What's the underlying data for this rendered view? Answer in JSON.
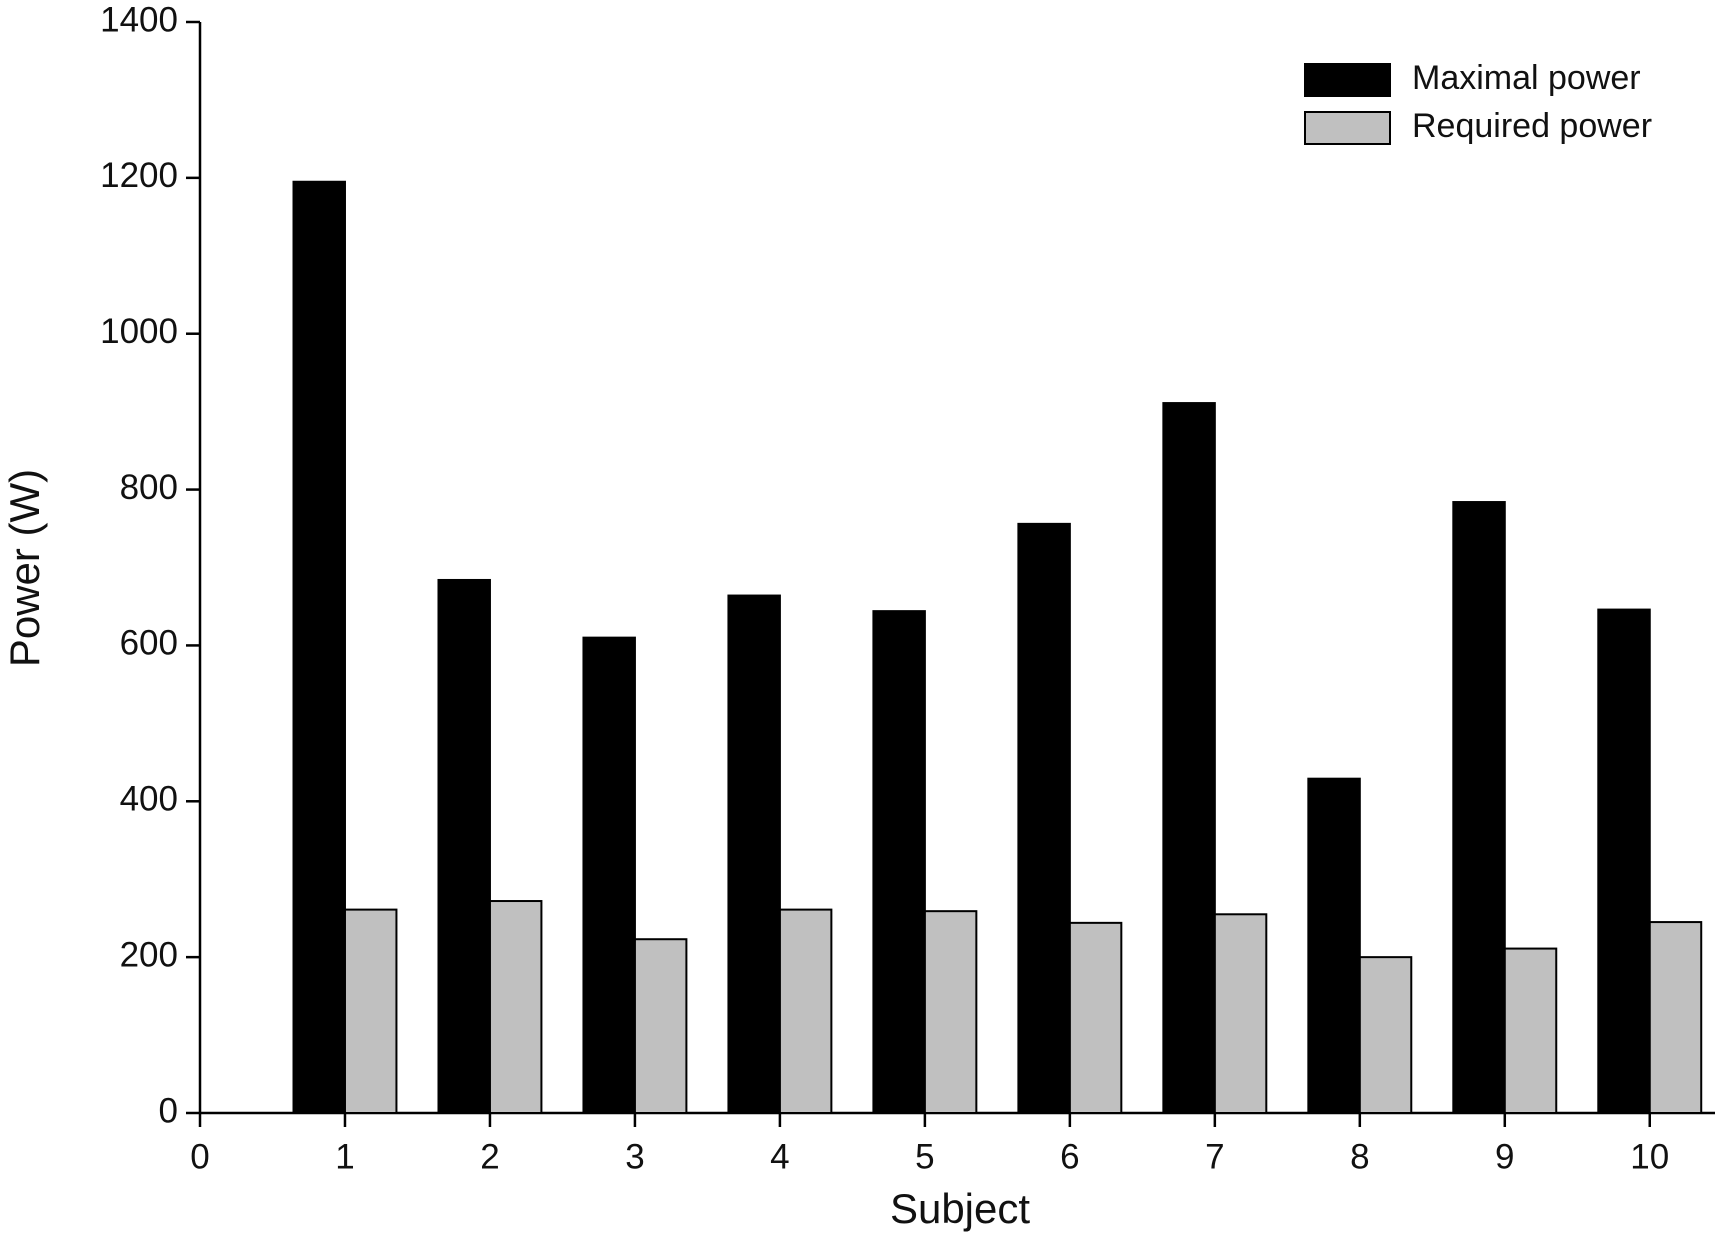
{
  "chart_data": {
    "type": "bar",
    "x_label": "Subject",
    "y_label": "Power (W)",
    "x": [
      1,
      2,
      3,
      4,
      5,
      6,
      7,
      8,
      9,
      10
    ],
    "xlim": [
      0,
      10.45
    ],
    "xticks": [
      0,
      1,
      2,
      3,
      4,
      5,
      6,
      7,
      8,
      9,
      10
    ],
    "ylim": [
      0,
      1400
    ],
    "yticks": [
      0,
      200,
      400,
      600,
      800,
      1000,
      1200,
      1400
    ],
    "grid": false,
    "legend": "upper right",
    "series": [
      {
        "name": "Maximal power",
        "color": "#000000",
        "values": [
          1195,
          684,
          610,
          664,
          644,
          756,
          911,
          429,
          784,
          646
        ]
      },
      {
        "name": "Required power",
        "color": "#c0c0c0",
        "values": [
          261,
          272,
          223,
          261,
          259,
          244,
          255,
          200,
          211,
          245
        ]
      }
    ]
  }
}
